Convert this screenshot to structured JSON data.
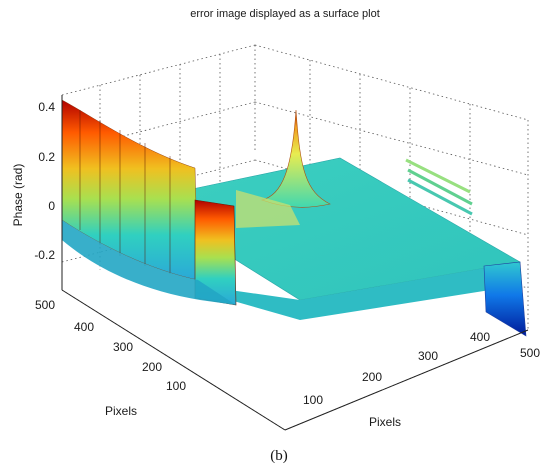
{
  "figure": {
    "title": "error image displayed as a surface plot",
    "caption": "(b)"
  },
  "chart_data": {
    "type": "surface",
    "title": "error image displayed as a surface plot",
    "xlabel": "Pixels",
    "ylabel": "Pixels",
    "zlabel": "Phase (rad)",
    "x_ticks": [
      "100",
      "200",
      "300",
      "400",
      "500"
    ],
    "y_ticks": [
      "100",
      "200",
      "300",
      "400",
      "500"
    ],
    "z_ticks": [
      "0.4",
      "0.2",
      "0",
      "-0.2"
    ],
    "xlim": [
      0,
      500
    ],
    "ylim": [
      0,
      500
    ],
    "zlim": [
      -0.35,
      0.45
    ],
    "grid": true,
    "colormap": [
      "#00008f",
      "#0070ff",
      "#2fd8c8",
      "#f0f028",
      "#ff8a00",
      "#b00000"
    ],
    "features": [
      {
        "name": "left edge ramp",
        "z_range": [
          -0.3,
          0.4
        ]
      },
      {
        "name": "central spike",
        "z_peak": 0.38
      },
      {
        "name": "right edge drop",
        "z_min": -0.35
      }
    ]
  }
}
